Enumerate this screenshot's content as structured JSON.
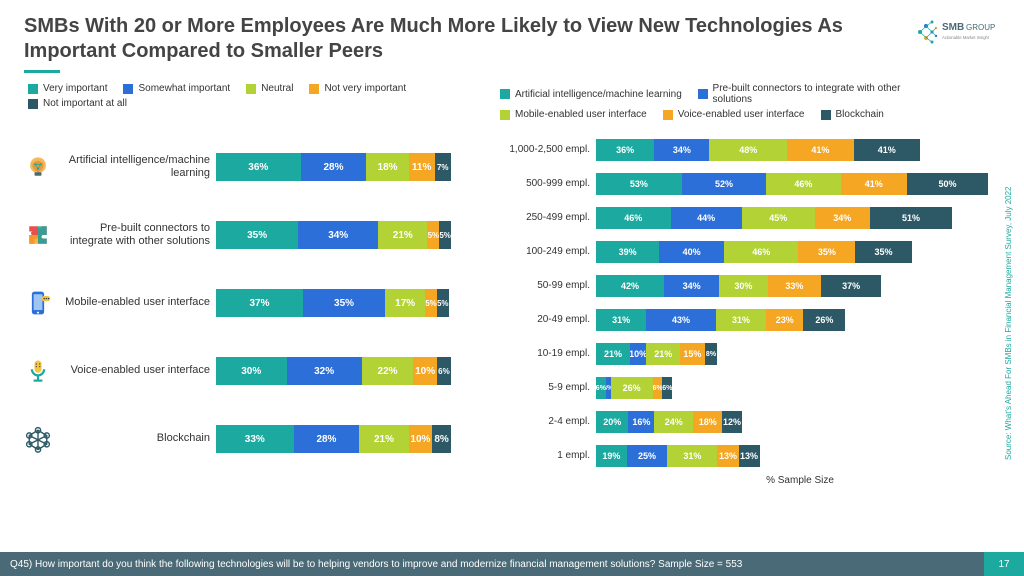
{
  "title": "SMBs With 20 or More Employees Are Much More Likely to View New Technologies As Important Compared to Smaller Peers",
  "logo_text": "SMB GROUP",
  "logo_tagline": "Actionable Market Insight",
  "footer_text": "Q45) How important do you think the following technologies will be to helping vendors to improve and modernize financial management solutions? Sample Size = 553",
  "page_number": "17",
  "source": "Source: What's Ahead For SMBs in Financial Management Survey, July 2022",
  "colors": {
    "teal": "#1ca9a0",
    "blue": "#2c6fd8",
    "lime": "#b2d235",
    "amber": "#f5a623",
    "dark": "#2d5866",
    "footer": "#4a6a77",
    "text": "#333333"
  },
  "left": {
    "legend": [
      {
        "label": "Very important",
        "color": "#1ca9a0"
      },
      {
        "label": "Somewhat important",
        "color": "#2c6fd8"
      },
      {
        "label": "Neutral",
        "color": "#b2d235"
      },
      {
        "label": "Not very important",
        "color": "#f5a623"
      },
      {
        "label": "Not important at all",
        "color": "#2d5866"
      }
    ],
    "max_total": 100,
    "rows": [
      {
        "icon": "ai",
        "label": "Artificial intelligence/machine learning",
        "values": [
          36,
          28,
          18,
          11,
          7
        ]
      },
      {
        "icon": "puzzle",
        "label": "Pre-built connectors to integrate with other solutions",
        "values": [
          35,
          34,
          21,
          5,
          5
        ]
      },
      {
        "icon": "mobile",
        "label": "Mobile-enabled user interface",
        "values": [
          37,
          35,
          17,
          5,
          5
        ]
      },
      {
        "icon": "mic",
        "label": "Voice-enabled user interface",
        "values": [
          30,
          32,
          22,
          10,
          6
        ]
      },
      {
        "icon": "chain",
        "label": "Blockchain",
        "values": [
          33,
          28,
          21,
          10,
          8
        ]
      }
    ]
  },
  "right": {
    "legend": [
      {
        "label": "Artificial intelligence/machine learning",
        "color": "#1ca9a0"
      },
      {
        "label": "Pre-built connectors to integrate with other solutions",
        "color": "#2c6fd8"
      },
      {
        "label": "Mobile-enabled user interface",
        "color": "#b2d235"
      },
      {
        "label": "Voice-enabled user interface",
        "color": "#f5a623"
      },
      {
        "label": "Blockchain",
        "color": "#2d5866"
      }
    ],
    "max_total": 250,
    "axis_label": "% Sample Size",
    "rows": [
      {
        "label": "1,000-2,500 empl.",
        "values": [
          36,
          34,
          48,
          41,
          41
        ]
      },
      {
        "label": "500-999 empl.",
        "values": [
          53,
          52,
          46,
          41,
          50
        ]
      },
      {
        "label": "250-499 empl.",
        "values": [
          46,
          44,
          45,
          34,
          51
        ]
      },
      {
        "label": "100-249 empl.",
        "values": [
          39,
          40,
          46,
          35,
          35
        ]
      },
      {
        "label": "50-99 empl.",
        "values": [
          42,
          34,
          30,
          33,
          37
        ]
      },
      {
        "label": "20-49 empl.",
        "values": [
          31,
          43,
          31,
          23,
          26
        ]
      },
      {
        "label": "10-19 empl.",
        "values": [
          21,
          10,
          21,
          15,
          8
        ]
      },
      {
        "label": "5-9 empl.",
        "values": [
          6,
          3,
          26,
          6,
          6
        ]
      },
      {
        "label": "2-4 empl.",
        "values": [
          20,
          16,
          24,
          18,
          12
        ]
      },
      {
        "label": "1 empl.",
        "values": [
          19,
          25,
          31,
          13,
          13
        ]
      }
    ]
  }
}
